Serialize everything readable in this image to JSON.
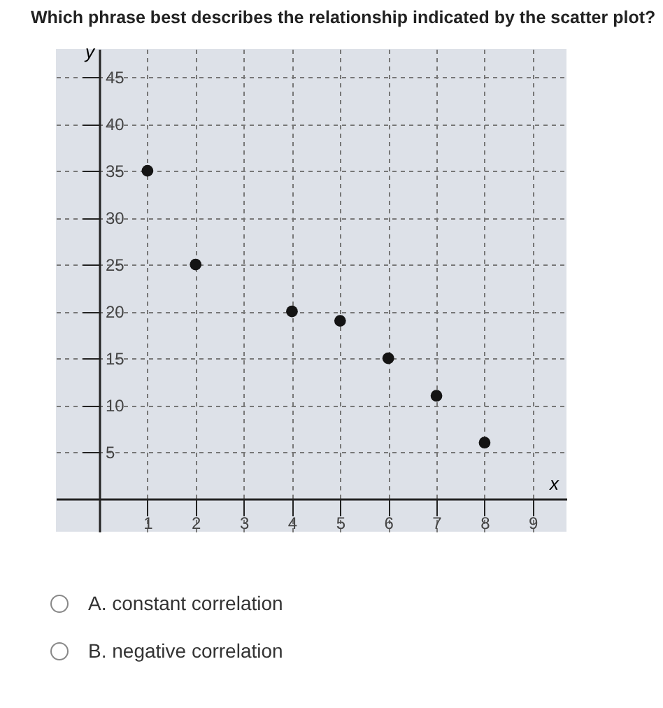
{
  "chart_data": {
    "type": "scatter",
    "title": "Which phrase best describes the relationship indicated by the scatter plot?",
    "xlabel": "x",
    "ylabel": "y",
    "x": [
      1,
      2,
      4,
      5,
      6,
      7,
      8
    ],
    "series": [
      {
        "color": "#141414",
        "values": [
          35,
          25,
          20,
          19,
          15,
          11,
          6
        ]
      }
    ],
    "xlim": [
      -0.9,
      9.7
    ],
    "ylim": [
      -3.5,
      48
    ],
    "xticks": [
      1,
      2,
      3,
      4,
      5,
      6,
      7,
      8,
      9
    ],
    "yticks": [
      5,
      10,
      15,
      20,
      25,
      30,
      35,
      40,
      45
    ],
    "grid": true,
    "marker": "circle",
    "annotations": [
      "A. constant correlation",
      "B. negative correlation"
    ]
  }
}
